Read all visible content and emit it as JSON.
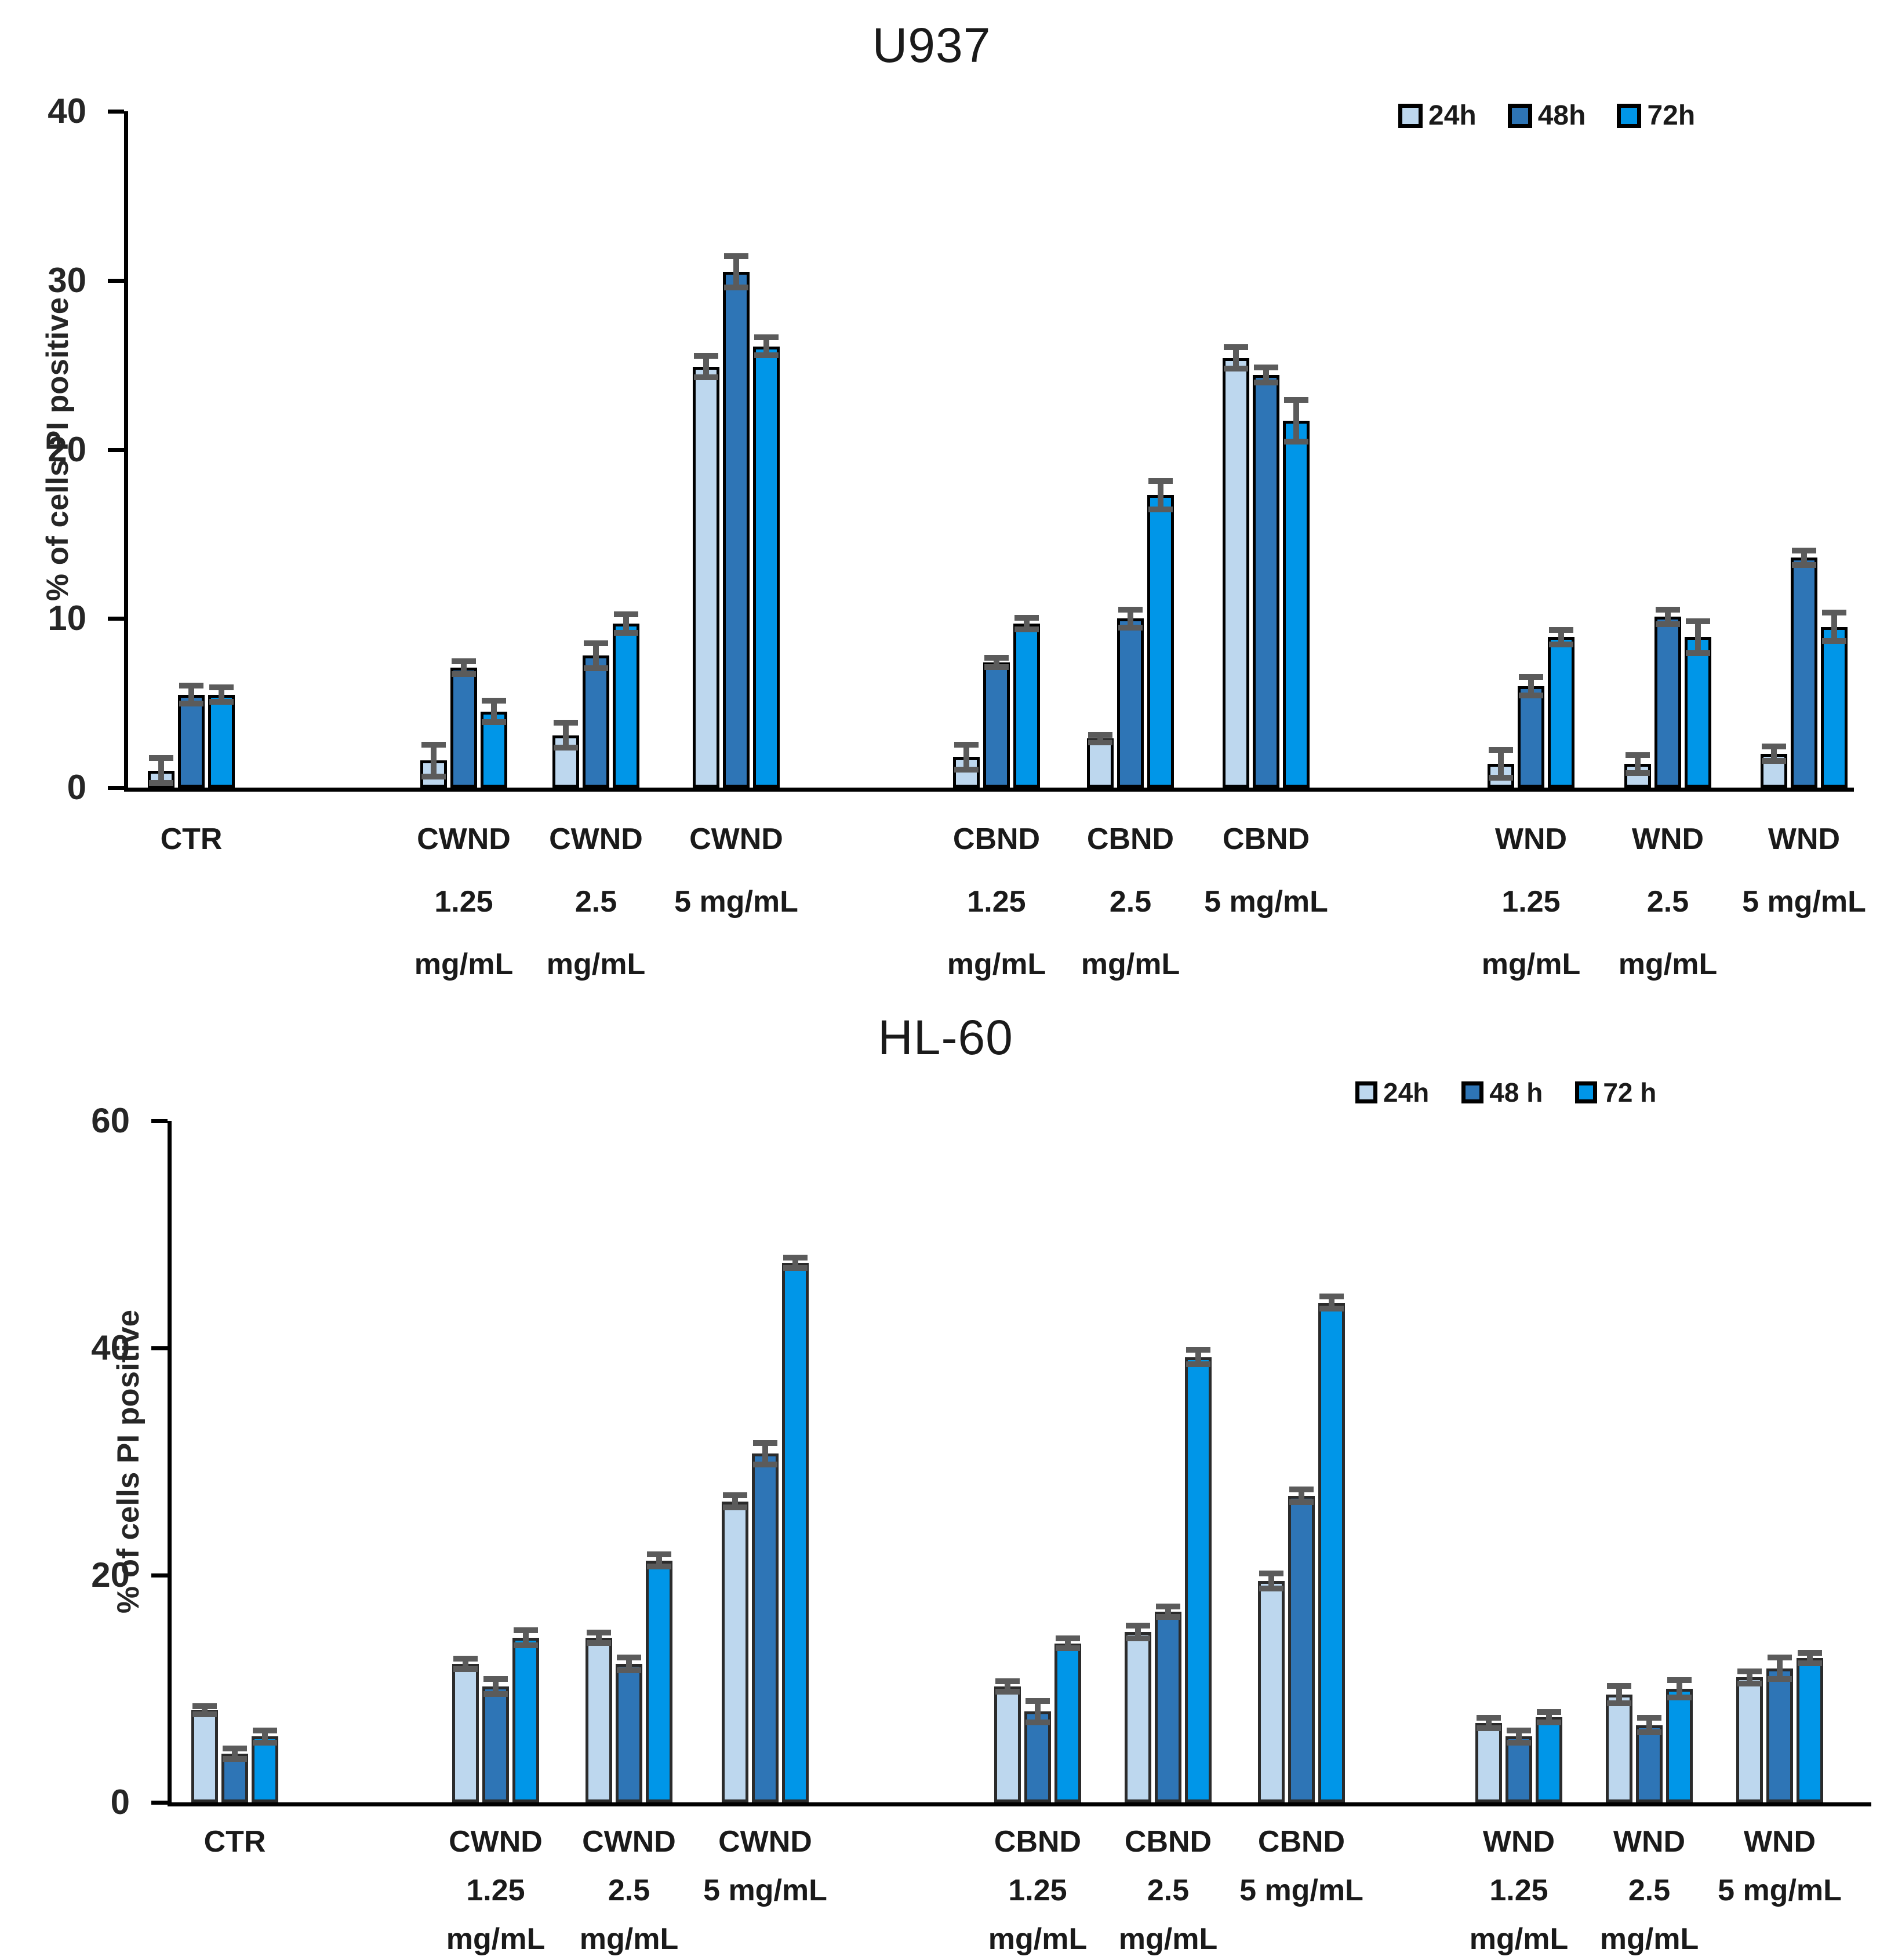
{
  "figure_title_top": "U937",
  "figure_title_bottom": "HL-60",
  "colors": {
    "series_24h": "#BDD7EE",
    "series_48h": "#2E75B6",
    "series_72h": "#0096E8",
    "bar_outline_top_chart": "#000000",
    "bar_outline_bottom_chart": "#2B2B2B",
    "error_bar": "#5B5B5B",
    "axis": "#000000"
  },
  "chart_data": [
    {
      "type": "bar",
      "title": "U937",
      "xlabel": "",
      "ylabel": "% of cells PI positive",
      "ylim": [
        0,
        40
      ],
      "yticks": [
        0,
        10,
        20,
        30,
        40
      ],
      "grid": false,
      "legend_position": "top-right",
      "legend": [
        "24h",
        "48h",
        "72h"
      ],
      "categories": [
        "CTR",
        "CWND 1.25 mg/mL",
        "CWND 2.5 mg/mL",
        "CWND 5 mg/mL",
        "CBND 1.25 mg/mL",
        "CBND 2.5 mg/mL",
        "CBND 5 mg/mL",
        "WND 1.25 mg/mL",
        "WND 2.5 mg/mL",
        "WND 5 mg/mL"
      ],
      "category_lines": [
        [
          "CTR"
        ],
        [
          "CWND",
          "1.25",
          "mg/mL"
        ],
        [
          "CWND",
          "2.5",
          "mg/mL"
        ],
        [
          "CWND",
          "5 mg/mL"
        ],
        [
          "CBND",
          "1.25",
          "mg/mL"
        ],
        [
          "CBND",
          "2.5",
          "mg/mL"
        ],
        [
          "CBND",
          "5 mg/mL"
        ],
        [
          "WND",
          "1.25",
          "mg/mL"
        ],
        [
          "WND",
          "2.5",
          "mg/mL"
        ],
        [
          "WND",
          "5 mg/mL"
        ]
      ],
      "series": [
        {
          "name": "24h",
          "color": "#BDD7EE",
          "values": [
            1.0,
            1.6,
            3.1,
            24.9,
            1.8,
            2.9,
            25.4,
            1.4,
            1.4,
            2.0
          ],
          "errors": [
            0.7,
            0.9,
            0.7,
            0.6,
            0.7,
            0.2,
            0.6,
            0.8,
            0.5,
            0.4
          ]
        },
        {
          "name": "48h",
          "color": "#2E75B6",
          "values": [
            5.5,
            7.1,
            7.8,
            30.5,
            7.4,
            10.0,
            24.4,
            6.0,
            10.1,
            13.6
          ],
          "errors": [
            0.5,
            0.35,
            0.7,
            0.9,
            0.25,
            0.5,
            0.4,
            0.5,
            0.4,
            0.4
          ]
        },
        {
          "name": "72h",
          "color": "#0096E8",
          "values": [
            5.5,
            4.5,
            9.7,
            26.1,
            9.7,
            17.3,
            21.7,
            8.9,
            8.9,
            9.5
          ],
          "errors": [
            0.4,
            0.6,
            0.5,
            0.5,
            0.3,
            0.8,
            1.2,
            0.4,
            0.9,
            0.8
          ]
        }
      ]
    },
    {
      "type": "bar",
      "title": "HL-60",
      "xlabel": "",
      "ylabel": "% of cells PI positive",
      "ylim": [
        0,
        60
      ],
      "yticks": [
        0,
        20,
        40,
        60
      ],
      "grid": false,
      "legend_position": "top-right",
      "legend": [
        "24h",
        "48 h",
        "72 h"
      ],
      "categories": [
        "CTR",
        "CWND 1.25 mg/mL",
        "CWND 2.5 mg/mL",
        "CWND 5 mg/mL",
        "CBND 1.25 mg/mL",
        "CBND 2.5 mg/mL",
        "CBND 5 mg/mL",
        "WND 1.25 mg/mL",
        "WND 2.5 mg/mL",
        "WND 5 mg/mL"
      ],
      "category_lines": [
        [
          "CTR"
        ],
        [
          "CWND",
          "1.25",
          "mg/mL"
        ],
        [
          "CWND",
          "2.5",
          "mg/mL"
        ],
        [
          "CWND",
          "5 mg/mL"
        ],
        [
          "CBND",
          "1.25",
          "mg/mL"
        ],
        [
          "CBND",
          "2.5",
          "mg/mL"
        ],
        [
          "CBND",
          "5 mg/mL"
        ],
        [
          "WND",
          "1.25",
          "mg/mL"
        ],
        [
          "WND",
          "2.5",
          "mg/mL"
        ],
        [
          "WND",
          "5 mg/mL"
        ]
      ],
      "series": [
        {
          "name": "24h",
          "color": "#BDD7EE",
          "values": [
            8.1,
            12.2,
            14.5,
            26.5,
            10.2,
            15.0,
            19.5,
            7.0,
            9.5,
            11.0
          ],
          "errors": [
            0.3,
            0.4,
            0.4,
            0.5,
            0.4,
            0.5,
            0.6,
            0.4,
            0.7,
            0.5
          ]
        },
        {
          "name": "48 h",
          "color": "#2E75B6",
          "values": [
            4.3,
            10.2,
            12.2,
            30.7,
            8.0,
            16.8,
            27.0,
            5.8,
            6.8,
            11.8
          ],
          "errors": [
            0.4,
            0.6,
            0.5,
            0.9,
            0.9,
            0.4,
            0.5,
            0.5,
            0.6,
            0.9
          ]
        },
        {
          "name": "72 h",
          "color": "#0096E8",
          "values": [
            5.8,
            14.5,
            21.3,
            47.5,
            14.0,
            39.2,
            44.0,
            7.5,
            10.0,
            12.7
          ],
          "errors": [
            0.5,
            0.6,
            0.5,
            0.4,
            0.4,
            0.6,
            0.5,
            0.4,
            0.7,
            0.4
          ]
        }
      ]
    }
  ]
}
